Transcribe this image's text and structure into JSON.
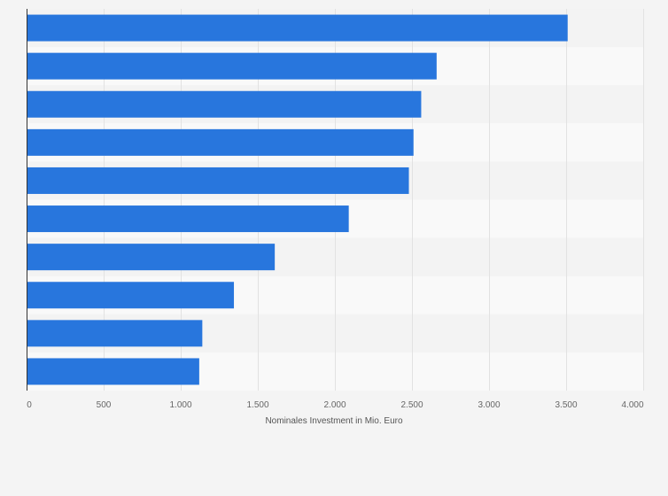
{
  "chart_data": {
    "type": "bar",
    "orientation": "horizontal",
    "categories": [
      "",
      "",
      "",
      "",
      "",
      "",
      "",
      "",
      "",
      ""
    ],
    "values": [
      3510,
      2660,
      2560,
      2510,
      2480,
      2090,
      1610,
      1345,
      1140,
      1120
    ],
    "title": "",
    "xlabel": "Nominales Investment in Mio. Euro",
    "ylabel": "",
    "xlim": [
      0,
      4000
    ],
    "x_ticks": [
      0,
      500,
      1000,
      1500,
      2000,
      2500,
      3000,
      3500,
      4000
    ],
    "x_tick_labels": [
      "0",
      "500",
      "1.000",
      "1.500",
      "2.000",
      "2.500",
      "3.000",
      "3.500",
      "4.000"
    ],
    "grid": true,
    "legend": "none"
  },
  "colors": {
    "bar": "#2876dd",
    "background": "#f4f4f4",
    "band_light": "#f9f9f9",
    "band_dark": "#f3f3f3",
    "gridline": "#e2e2e2",
    "axis": "#333333"
  }
}
